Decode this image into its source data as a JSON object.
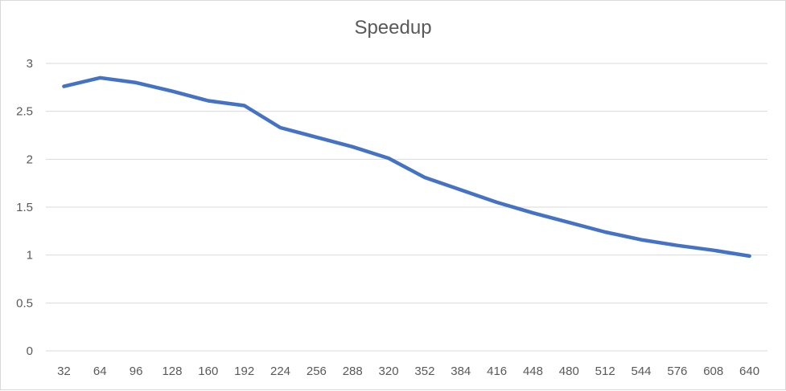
{
  "chart_data": {
    "type": "line",
    "title": "Speedup",
    "xlabel": "",
    "ylabel": "",
    "categories": [
      "32",
      "64",
      "96",
      "128",
      "160",
      "192",
      "224",
      "256",
      "288",
      "320",
      "352",
      "384",
      "416",
      "448",
      "480",
      "512",
      "544",
      "576",
      "608",
      "640"
    ],
    "series": [
      {
        "name": "Speedup",
        "color": "#4472C4",
        "values": [
          2.76,
          2.85,
          2.8,
          2.71,
          2.61,
          2.56,
          2.33,
          2.23,
          2.13,
          2.01,
          1.81,
          1.68,
          1.55,
          1.44,
          1.34,
          1.24,
          1.16,
          1.1,
          1.05,
          0.99
        ]
      }
    ],
    "ylim": [
      0,
      3
    ],
    "yticks": [
      "0",
      "0.5",
      "1",
      "1.5",
      "2",
      "2.5",
      "3"
    ],
    "grid": true,
    "legend": "none"
  },
  "colors": {
    "line": "#4472C4",
    "grid": "#d9d9d9",
    "text": "#595959"
  }
}
